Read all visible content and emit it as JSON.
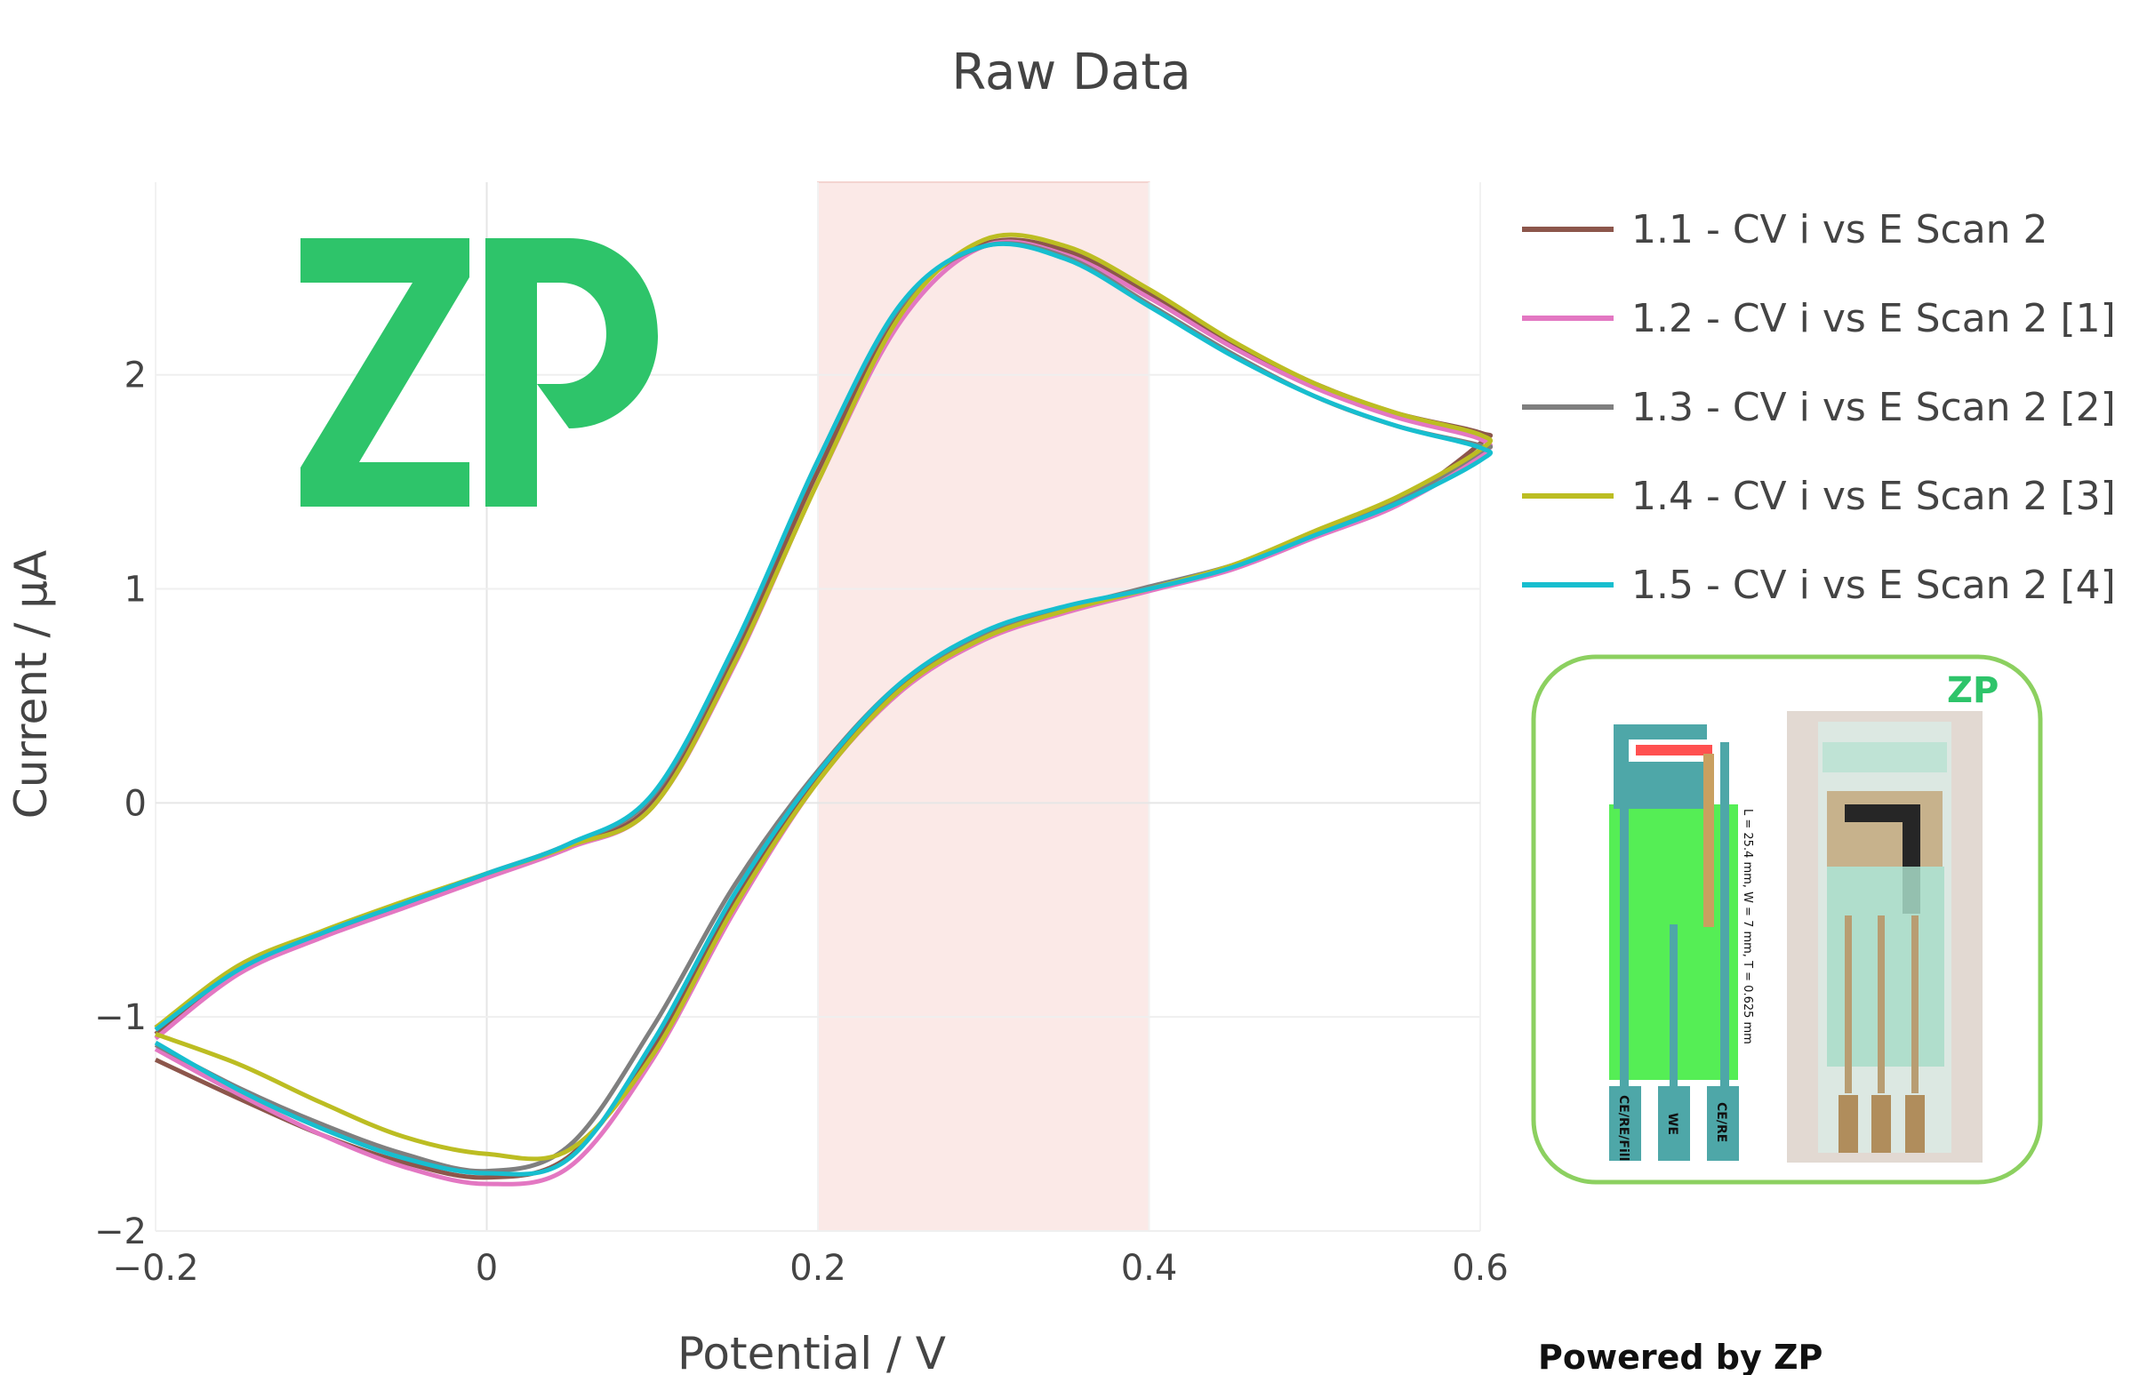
{
  "chart_data": {
    "type": "line",
    "title": "Raw Data",
    "xlabel": "Potential / V",
    "ylabel": "Current / µA",
    "xlim": [
      -0.2,
      0.6
    ],
    "ylim": [
      -2.0,
      2.9
    ],
    "x_ticks": [
      -0.2,
      0,
      0.2,
      0.4,
      0.6
    ],
    "x_tick_labels": [
      "−0.2",
      "0",
      "0.2",
      "0.4",
      "0.6"
    ],
    "y_ticks": [
      -2,
      -1,
      0,
      1,
      2
    ],
    "y_tick_labels": [
      "−2",
      "−1",
      "0",
      "1",
      "2"
    ],
    "highlight_region": {
      "x_start": 0.2,
      "x_end": 0.4,
      "color": "#fbe9e7"
    },
    "grid": true,
    "legend_position": "right",
    "series": [
      {
        "name": "1.1 - CV i vs E Scan 2",
        "color": "#8c564b",
        "x": [
          -0.2,
          -0.15,
          -0.1,
          -0.05,
          0.0,
          0.05,
          0.1,
          0.15,
          0.2,
          0.25,
          0.3,
          0.35,
          0.4,
          0.45,
          0.5,
          0.55,
          0.6,
          0.6,
          0.55,
          0.5,
          0.45,
          0.4,
          0.35,
          0.3,
          0.25,
          0.2,
          0.15,
          0.1,
          0.05,
          0.0,
          -0.05,
          -0.1,
          -0.15,
          -0.2
        ],
        "y": [
          -1.2,
          -1.38,
          -1.55,
          -1.68,
          -1.75,
          -1.65,
          -1.15,
          -0.45,
          0.12,
          0.55,
          0.78,
          0.9,
          1.0,
          1.1,
          1.25,
          1.4,
          1.68,
          1.73,
          1.82,
          1.96,
          2.15,
          2.38,
          2.58,
          2.61,
          2.3,
          1.55,
          0.7,
          0.0,
          -0.2,
          -0.34,
          -0.48,
          -0.62,
          -0.79,
          -1.08
        ]
      },
      {
        "name": "1.2 - CV i vs E Scan 2 [1]",
        "color": "#e377c2",
        "x": [
          -0.2,
          -0.15,
          -0.1,
          -0.05,
          0.0,
          0.05,
          0.1,
          0.15,
          0.2,
          0.25,
          0.3,
          0.35,
          0.4,
          0.45,
          0.5,
          0.55,
          0.6,
          0.6,
          0.55,
          0.5,
          0.45,
          0.4,
          0.35,
          0.3,
          0.25,
          0.2,
          0.15,
          0.1,
          0.05,
          0.0,
          -0.05,
          -0.1,
          -0.15,
          -0.2
        ],
        "y": [
          -1.15,
          -1.36,
          -1.55,
          -1.7,
          -1.78,
          -1.7,
          -1.2,
          -0.5,
          0.1,
          0.52,
          0.76,
          0.89,
          0.99,
          1.09,
          1.24,
          1.39,
          1.62,
          1.7,
          1.8,
          1.94,
          2.13,
          2.36,
          2.56,
          2.6,
          2.25,
          1.5,
          0.65,
          -0.02,
          -0.21,
          -0.35,
          -0.49,
          -0.63,
          -0.8,
          -1.1
        ]
      },
      {
        "name": "1.3 - CV i vs E Scan 2 [2]",
        "color": "#7f7f7f",
        "x": [
          -0.2,
          -0.15,
          -0.1,
          -0.05,
          0.0,
          0.05,
          0.1,
          0.15,
          0.2,
          0.25,
          0.3,
          0.35,
          0.4,
          0.45,
          0.5,
          0.55,
          0.6,
          0.6,
          0.55,
          0.5,
          0.45,
          0.4,
          0.35,
          0.3,
          0.25,
          0.2,
          0.15,
          0.1,
          0.05,
          0.0,
          -0.05,
          -0.1,
          -0.15,
          -0.2
        ],
        "y": [
          -1.13,
          -1.33,
          -1.5,
          -1.64,
          -1.72,
          -1.6,
          -1.05,
          -0.38,
          0.15,
          0.56,
          0.79,
          0.91,
          1.01,
          1.11,
          1.26,
          1.41,
          1.64,
          1.67,
          1.76,
          1.9,
          2.1,
          2.33,
          2.55,
          2.6,
          2.32,
          1.6,
          0.73,
          0.03,
          -0.19,
          -0.33,
          -0.47,
          -0.61,
          -0.77,
          -1.05
        ]
      },
      {
        "name": "1.4 - CV i vs E Scan 2 [3]",
        "color": "#bcbd22",
        "x": [
          -0.2,
          -0.15,
          -0.1,
          -0.05,
          0.0,
          0.05,
          0.1,
          0.15,
          0.2,
          0.25,
          0.3,
          0.35,
          0.4,
          0.45,
          0.5,
          0.55,
          0.6,
          0.6,
          0.55,
          0.5,
          0.45,
          0.4,
          0.35,
          0.3,
          0.25,
          0.2,
          0.15,
          0.1,
          0.05,
          0.0,
          -0.05,
          -0.1,
          -0.15,
          -0.2
        ],
        "y": [
          -1.08,
          -1.22,
          -1.4,
          -1.56,
          -1.64,
          -1.62,
          -1.18,
          -0.48,
          0.1,
          0.53,
          0.77,
          0.9,
          1.0,
          1.11,
          1.27,
          1.43,
          1.65,
          1.72,
          1.82,
          1.96,
          2.16,
          2.4,
          2.6,
          2.63,
          2.28,
          1.5,
          0.66,
          -0.02,
          -0.2,
          -0.33,
          -0.46,
          -0.6,
          -0.76,
          -1.05
        ]
      },
      {
        "name": "1.5 - CV i vs E Scan 2 [4]",
        "color": "#17becf",
        "x": [
          -0.2,
          -0.15,
          -0.1,
          -0.05,
          0.0,
          0.05,
          0.1,
          0.15,
          0.2,
          0.25,
          0.3,
          0.35,
          0.4,
          0.45,
          0.5,
          0.55,
          0.6,
          0.6,
          0.55,
          0.5,
          0.45,
          0.4,
          0.35,
          0.3,
          0.25,
          0.2,
          0.15,
          0.1,
          0.05,
          0.0,
          -0.05,
          -0.1,
          -0.15,
          -0.2
        ],
        "y": [
          -1.12,
          -1.34,
          -1.52,
          -1.66,
          -1.73,
          -1.66,
          -1.12,
          -0.42,
          0.14,
          0.56,
          0.8,
          0.92,
          1.0,
          1.1,
          1.25,
          1.4,
          1.6,
          1.66,
          1.76,
          1.9,
          2.09,
          2.32,
          2.54,
          2.6,
          2.33,
          1.6,
          0.74,
          0.04,
          -0.19,
          -0.33,
          -0.47,
          -0.61,
          -0.78,
          -1.06
        ]
      }
    ]
  },
  "branding": {
    "logo_text": "ZP",
    "logo_color": "#2ec46a",
    "powered_by": "Powered by ZP"
  },
  "inset": {
    "logo_text": "ZP",
    "border_color": "#8cd060",
    "dimension_text": "L = 25.4 mm, W = 7 mm, T = 0.625 mm",
    "pad_labels": [
      "CE/RE/Fill",
      "WE",
      "CE/RE"
    ]
  }
}
